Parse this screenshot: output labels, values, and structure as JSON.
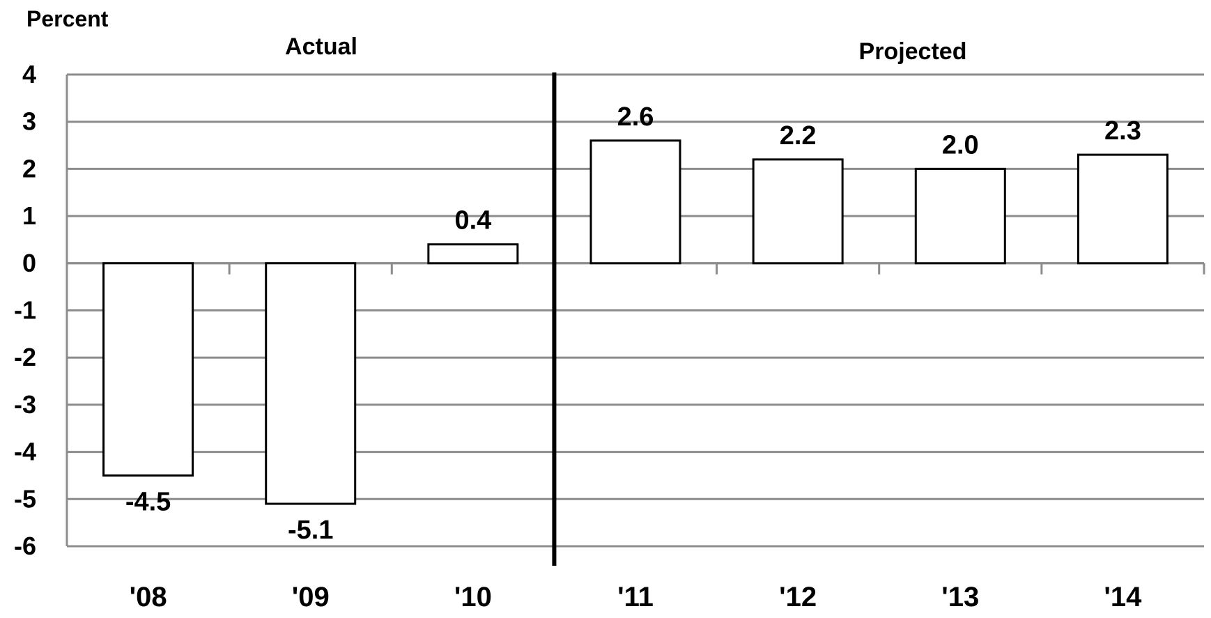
{
  "chart_data": {
    "type": "bar",
    "ylabel": "Percent",
    "categories": [
      "'08",
      "'09",
      "'10",
      "'11",
      "'12",
      "'13",
      "'14"
    ],
    "values": [
      -4.5,
      -5.1,
      0.4,
      2.6,
      2.2,
      2.0,
      2.3
    ],
    "data_labels": [
      "-4.5",
      "-5.1",
      "0.4",
      "2.6",
      "2.2",
      "2.0",
      "2.3"
    ],
    "ylim": [
      -6,
      4
    ],
    "yticks": [
      4,
      3,
      2,
      1,
      0,
      -1,
      -2,
      -3,
      -4,
      -5,
      -6
    ],
    "grid": true,
    "sections": [
      {
        "label": "Actual",
        "categories": [
          "'08",
          "'09",
          "'10"
        ]
      },
      {
        "label": "Projected",
        "categories": [
          "'11",
          "'12",
          "'13",
          "'14"
        ]
      }
    ],
    "colors": {
      "bar_fill": "#ffffff",
      "bar_stroke": "#000000",
      "grid": "#8c8c8c",
      "divider": "#000000"
    }
  }
}
